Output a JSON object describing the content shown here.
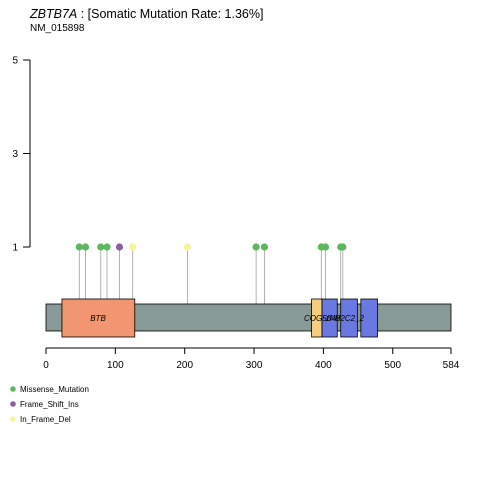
{
  "chart_data": {
    "type": "lollipop",
    "gene": "ZBTB7A",
    "title_rest": " : [Somatic Mutation Rate: 1.36%]",
    "subtitle": "NM_015898",
    "protein_length": 584,
    "x_ticks": [
      0,
      100,
      200,
      300,
      400,
      500,
      584
    ],
    "y_ticks": [
      1,
      3,
      5
    ],
    "ylim": [
      0,
      5
    ],
    "domains": [
      {
        "name": "BTB",
        "start": 23,
        "end": 128,
        "color": "#f29672"
      },
      {
        "name": "COG5048",
        "start": 383,
        "end": 398,
        "color": "#f6cd7f"
      },
      {
        "name": "zf-H2C2_2",
        "start": 398,
        "end": 420,
        "color": "#6a78e2"
      },
      {
        "name": "zf-H2C2_2",
        "start": 425,
        "end": 449,
        "color": "#6a78e2"
      },
      {
        "name": "zf-H2C2_2",
        "start": 454,
        "end": 478,
        "color": "#6a78e2"
      }
    ],
    "domain_labels": [
      {
        "text": "BTB",
        "pos": 75
      },
      {
        "text": "COG5048",
        "pos": 398
      },
      {
        "text": "zf-H2C2_2",
        "pos": 431
      }
    ],
    "mutations": [
      {
        "pos": 48,
        "count": 1,
        "type": "Missense_Mutation"
      },
      {
        "pos": 57,
        "count": 1,
        "type": "Missense_Mutation"
      },
      {
        "pos": 79,
        "count": 1,
        "type": "Missense_Mutation"
      },
      {
        "pos": 88,
        "count": 1,
        "type": "Missense_Mutation"
      },
      {
        "pos": 106,
        "count": 1,
        "type": "Frame_Shift_Ins"
      },
      {
        "pos": 125,
        "count": 1,
        "type": "In_Frame_Del"
      },
      {
        "pos": 204,
        "count": 1,
        "type": "In_Frame_Del"
      },
      {
        "pos": 303,
        "count": 1,
        "type": "Missense_Mutation"
      },
      {
        "pos": 315,
        "count": 1,
        "type": "Missense_Mutation"
      },
      {
        "pos": 397,
        "count": 1,
        "type": "Missense_Mutation"
      },
      {
        "pos": 403,
        "count": 1,
        "type": "Missense_Mutation"
      },
      {
        "pos": 425,
        "count": 1,
        "type": "Missense_Mutation"
      },
      {
        "pos": 428,
        "count": 1,
        "type": "Missense_Mutation"
      }
    ],
    "legend": [
      {
        "name": "Missense_Mutation",
        "color": "#5cb85c"
      },
      {
        "name": "Frame_Shift_Ins",
        "color": "#8e5ea2"
      },
      {
        "name": "In_Frame_Del",
        "color": "#f4f49a"
      }
    ],
    "legend_placement": "bottom-left",
    "backbone_color": "#879a96"
  }
}
